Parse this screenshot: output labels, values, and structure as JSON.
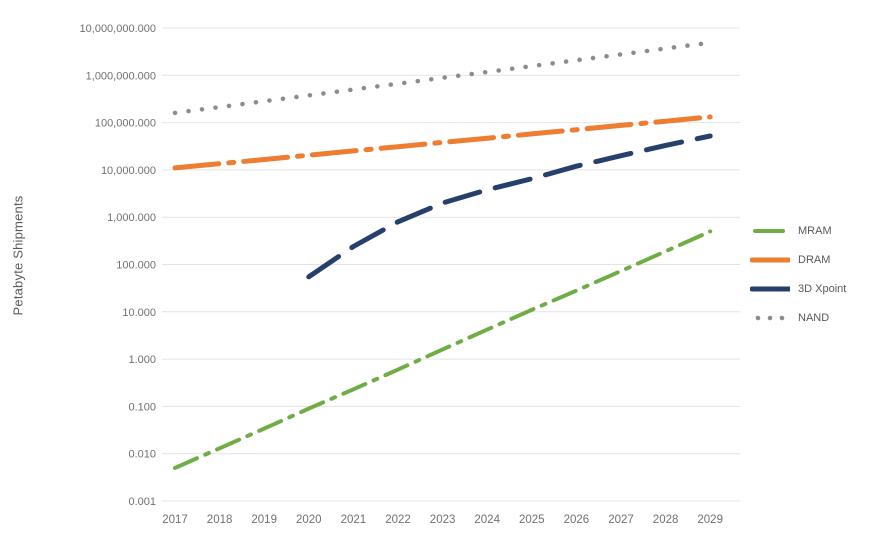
{
  "chart_data": {
    "type": "line",
    "title": "",
    "xlabel": "",
    "ylabel": "Petabyte Shipments",
    "y_scale": "log",
    "ylim": [
      0.001,
      10000000
    ],
    "grid": "horizontal",
    "legend_position": "right",
    "categories": [
      "2017",
      "2018",
      "2019",
      "2020",
      "2021",
      "2022",
      "2023",
      "2024",
      "2025",
      "2026",
      "2027",
      "2028",
      "2029"
    ],
    "y_ticks": [
      {
        "label": "10,000,000.000",
        "value": 10000000
      },
      {
        "label": "1,000,000.000",
        "value": 1000000
      },
      {
        "label": "100,000.000",
        "value": 100000
      },
      {
        "label": "10,000.000",
        "value": 10000
      },
      {
        "label": "1,000.000",
        "value": 1000
      },
      {
        "label": "100.000",
        "value": 100
      },
      {
        "label": "10.000",
        "value": 10
      },
      {
        "label": "1.000",
        "value": 1
      },
      {
        "label": "0.100",
        "value": 0.1
      },
      {
        "label": "0.010",
        "value": 0.01
      },
      {
        "label": "0.001",
        "value": 0.001
      }
    ],
    "series": [
      {
        "name": "MRAM",
        "color": "#70AD47",
        "line_style": "dash-dot",
        "values": [
          0.005,
          0.013,
          0.034,
          0.09,
          0.23,
          0.6,
          1.6,
          4.2,
          11,
          28,
          73,
          190,
          500
        ]
      },
      {
        "name": "DRAM",
        "color": "#ED7D31",
        "line_style": "long-dash-dot",
        "values": [
          11000,
          13500,
          16600,
          20500,
          25200,
          31000,
          38100,
          46900,
          57600,
          70900,
          87200,
          107000,
          132000
        ]
      },
      {
        "name": "3D Xpoint",
        "color": "#26406B",
        "line_style": "long-dash",
        "values": [
          null,
          null,
          null,
          55,
          240,
          800,
          2000,
          3800,
          6500,
          12000,
          20000,
          33000,
          52000
        ]
      },
      {
        "name": "NAND",
        "color": "#8C8C8C",
        "line_style": "dotted",
        "values": [
          160000,
          213000,
          283000,
          376000,
          500000,
          665000,
          885000,
          1177000,
          1565000,
          2081000,
          2768000,
          3681000,
          4895000
        ]
      }
    ]
  }
}
